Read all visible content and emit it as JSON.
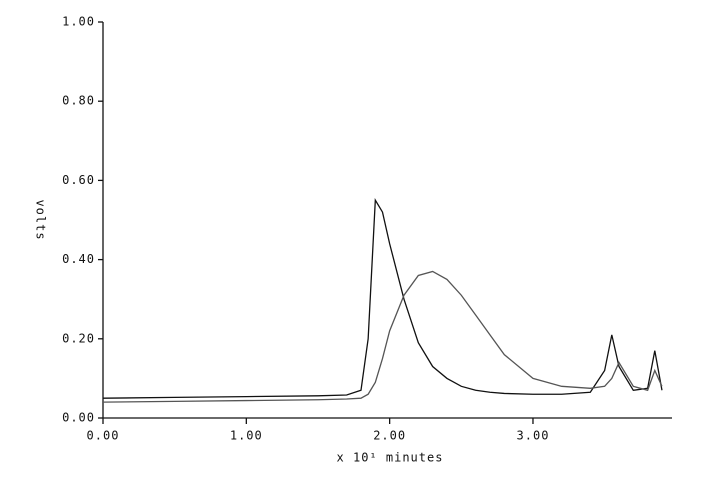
{
  "chart_data": {
    "type": "line",
    "y_label": "volts",
    "x_label": "x 10¹ minutes",
    "x": [
      0,
      0.5,
      1.0,
      1.5,
      1.7,
      1.8,
      1.85,
      1.9,
      1.95,
      2.0,
      2.1,
      2.2,
      2.3,
      2.4,
      2.5,
      2.6,
      2.7,
      2.8,
      3.0,
      3.2,
      3.4,
      3.5,
      3.55,
      3.6,
      3.7,
      3.8,
      3.85,
      3.9
    ],
    "series": [
      {
        "color": "#111111",
        "values": [
          0.05,
          0.052,
          0.054,
          0.056,
          0.058,
          0.07,
          0.2,
          0.55,
          0.52,
          0.44,
          0.3,
          0.19,
          0.13,
          0.1,
          0.08,
          0.07,
          0.065,
          0.062,
          0.06,
          0.06,
          0.065,
          0.12,
          0.21,
          0.13,
          0.07,
          0.075,
          0.17,
          0.07
        ]
      },
      {
        "color": "#555555",
        "values": [
          0.04,
          0.042,
          0.044,
          0.046,
          0.048,
          0.05,
          0.06,
          0.09,
          0.15,
          0.22,
          0.31,
          0.36,
          0.37,
          0.35,
          0.31,
          0.26,
          0.21,
          0.16,
          0.1,
          0.08,
          0.075,
          0.08,
          0.1,
          0.14,
          0.08,
          0.07,
          0.12,
          0.08
        ]
      }
    ],
    "xlim": [
      0,
      3.97
    ],
    "ylim": [
      0,
      1
    ],
    "xticks": [
      {
        "value": 0,
        "label": "0.00"
      },
      {
        "value": 1,
        "label": "1.00"
      },
      {
        "value": 2,
        "label": "2.00"
      },
      {
        "value": 3,
        "label": "3.00"
      }
    ],
    "yticks": [
      {
        "value": 0,
        "label": "0.00"
      },
      {
        "value": 0.2,
        "label": "0.20"
      },
      {
        "value": 0.4,
        "label": "0.40"
      },
      {
        "value": 0.6,
        "label": "0.60"
      },
      {
        "value": 0.8,
        "label": "0.80"
      },
      {
        "value": 1,
        "label": "1.00"
      }
    ]
  }
}
